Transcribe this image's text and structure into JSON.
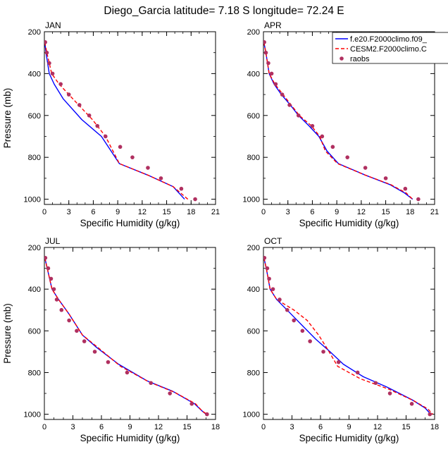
{
  "figure": {
    "title": "Diego_Garcia  latitude= 7.18 S longitude= 72.24 E"
  },
  "legend": {
    "placement": "top-right of APR panel",
    "entries": [
      {
        "label": "f.e20.F2000climo.f09_",
        "style": "solid",
        "color": "#0000ff"
      },
      {
        "label": "CESM2.F2000climo.C",
        "style": "dashed",
        "color": "#ff0000"
      },
      {
        "label": "raobs",
        "style": "marker",
        "color": "#b03060"
      }
    ]
  },
  "chart_data": [
    {
      "type": "line",
      "panel": "JAN",
      "title": "JAN",
      "xlabel": "Specific Humidity (g/kg)",
      "ylabel": "Pressure (mb)",
      "xlim": [
        0,
        21
      ],
      "ylim": [
        1025,
        200
      ],
      "xticks": [
        0,
        3,
        6,
        9,
        12,
        15,
        18,
        21
      ],
      "yticks": [
        200,
        400,
        600,
        800,
        1000
      ],
      "grid": false,
      "series": [
        {
          "name": "f.e20.F2000climo.f09_",
          "style": "solid",
          "color": "#0000ff",
          "points": [
            [
              0.05,
              250
            ],
            [
              0.2,
              300
            ],
            [
              0.6,
              400
            ],
            [
              1.2,
              450
            ],
            [
              2.3,
              520
            ],
            [
              4.6,
              620
            ],
            [
              7.0,
              700
            ],
            [
              9.2,
              830
            ],
            [
              12.7,
              885
            ],
            [
              15.8,
              940
            ],
            [
              17.2,
              1000
            ]
          ]
        },
        {
          "name": "CESM2.F2000climo.C",
          "style": "dashed",
          "color": "#ff0000",
          "points": [
            [
              0.05,
              250
            ],
            [
              0.3,
              300
            ],
            [
              0.9,
              400
            ],
            [
              1.8,
              450
            ],
            [
              4.2,
              550
            ],
            [
              5.9,
              620
            ],
            [
              7.5,
              700
            ],
            [
              9.2,
              830
            ],
            [
              12.7,
              885
            ],
            [
              15.8,
              940
            ],
            [
              17.6,
              1000
            ]
          ]
        },
        {
          "name": "raobs",
          "style": "marker",
          "color": "#b03060",
          "points": [
            [
              0.1,
              250
            ],
            [
              0.3,
              300
            ],
            [
              0.6,
              350
            ],
            [
              1.0,
              400
            ],
            [
              2.0,
              450
            ],
            [
              3.0,
              500
            ],
            [
              4.3,
              550
            ],
            [
              5.5,
              600
            ],
            [
              6.5,
              650
            ],
            [
              7.5,
              700
            ],
            [
              9.3,
              750
            ],
            [
              10.8,
              800
            ],
            [
              12.7,
              850
            ],
            [
              14.3,
              900
            ],
            [
              16.8,
              950
            ],
            [
              18.5,
              1000
            ]
          ]
        }
      ]
    },
    {
      "type": "line",
      "panel": "APR",
      "title": "APR",
      "xlabel": "Specific Humidity (g/kg)",
      "ylabel": "",
      "xlim": [
        0,
        21
      ],
      "ylim": [
        1025,
        200
      ],
      "xticks": [
        0,
        3,
        6,
        9,
        12,
        15,
        18,
        21
      ],
      "yticks": [
        200,
        400,
        600,
        800,
        1000
      ],
      "grid": false,
      "series": [
        {
          "name": "f.e20.F2000climo.f09_",
          "style": "solid",
          "color": "#0000ff",
          "points": [
            [
              0.05,
              250
            ],
            [
              0.3,
              300
            ],
            [
              0.7,
              400
            ],
            [
              1.3,
              450
            ],
            [
              2.2,
              500
            ],
            [
              3.3,
              550
            ],
            [
              4.3,
              600
            ],
            [
              5.6,
              650
            ],
            [
              6.8,
              700
            ],
            [
              7.8,
              770
            ],
            [
              9.2,
              830
            ],
            [
              12.5,
              885
            ],
            [
              15.5,
              930
            ],
            [
              17.3,
              970
            ],
            [
              18.3,
              1000
            ]
          ]
        },
        {
          "name": "CESM2.F2000climo.C",
          "style": "dashed",
          "color": "#ff0000",
          "points": [
            [
              0.05,
              250
            ],
            [
              0.3,
              300
            ],
            [
              0.7,
              400
            ],
            [
              1.4,
              450
            ],
            [
              2.4,
              500
            ],
            [
              3.4,
              550
            ],
            [
              4.4,
              600
            ],
            [
              5.9,
              650
            ],
            [
              6.9,
              700
            ],
            [
              7.6,
              770
            ],
            [
              9.1,
              830
            ],
            [
              12.5,
              885
            ],
            [
              15.6,
              930
            ],
            [
              17.5,
              970
            ],
            [
              18.3,
              1000
            ]
          ]
        },
        {
          "name": "raobs",
          "style": "marker",
          "color": "#b03060",
          "points": [
            [
              0.1,
              250
            ],
            [
              0.3,
              300
            ],
            [
              0.6,
              350
            ],
            [
              1.0,
              400
            ],
            [
              1.5,
              450
            ],
            [
              2.3,
              500
            ],
            [
              3.2,
              550
            ],
            [
              4.3,
              600
            ],
            [
              6.0,
              650
            ],
            [
              7.2,
              700
            ],
            [
              8.5,
              750
            ],
            [
              10.3,
              800
            ],
            [
              12.5,
              850
            ],
            [
              15.0,
              900
            ],
            [
              17.4,
              950
            ],
            [
              19.0,
              1000
            ]
          ]
        }
      ]
    },
    {
      "type": "line",
      "panel": "JUL",
      "title": "JUL",
      "xlabel": "Specific Humidity (g/kg)",
      "ylabel": "Pressure (mb)",
      "xlim": [
        0,
        18
      ],
      "ylim": [
        1025,
        200
      ],
      "xticks": [
        0,
        3,
        6,
        9,
        12,
        15,
        18
      ],
      "yticks": [
        200,
        400,
        600,
        800,
        1000
      ],
      "grid": false,
      "series": [
        {
          "name": "f.e20.F2000climo.f09_",
          "style": "solid",
          "color": "#0000ff",
          "points": [
            [
              0.05,
              250
            ],
            [
              0.3,
              300
            ],
            [
              0.8,
              400
            ],
            [
              1.5,
              450
            ],
            [
              2.6,
              520
            ],
            [
              4.0,
              620
            ],
            [
              5.5,
              680
            ],
            [
              7.8,
              760
            ],
            [
              10.8,
              840
            ],
            [
              13.5,
              890
            ],
            [
              15.8,
              950
            ],
            [
              16.6,
              985
            ],
            [
              17.0,
              1000
            ]
          ]
        },
        {
          "name": "CESM2.F2000climo.C",
          "style": "dashed",
          "color": "#ff0000",
          "points": [
            [
              0.05,
              250
            ],
            [
              0.3,
              300
            ],
            [
              0.8,
              400
            ],
            [
              1.5,
              450
            ],
            [
              2.6,
              520
            ],
            [
              4.0,
              620
            ],
            [
              5.9,
              690
            ],
            [
              8.0,
              770
            ],
            [
              11.0,
              845
            ],
            [
              13.7,
              895
            ],
            [
              15.9,
              950
            ],
            [
              16.6,
              985
            ],
            [
              17.1,
              1000
            ]
          ]
        },
        {
          "name": "raobs",
          "style": "marker",
          "color": "#b03060",
          "points": [
            [
              0.1,
              250
            ],
            [
              0.4,
              300
            ],
            [
              0.7,
              350
            ],
            [
              1.0,
              400
            ],
            [
              1.3,
              450
            ],
            [
              1.8,
              500
            ],
            [
              2.6,
              550
            ],
            [
              3.4,
              600
            ],
            [
              4.2,
              650
            ],
            [
              5.3,
              700
            ],
            [
              6.7,
              750
            ],
            [
              8.7,
              800
            ],
            [
              11.2,
              850
            ],
            [
              13.2,
              900
            ],
            [
              15.5,
              950
            ],
            [
              17.1,
              1000
            ]
          ]
        }
      ]
    },
    {
      "type": "line",
      "panel": "OCT",
      "title": "OCT",
      "xlabel": "Specific Humidity (g/kg)",
      "ylabel": "",
      "xlim": [
        0,
        18
      ],
      "ylim": [
        1025,
        200
      ],
      "xticks": [
        0,
        3,
        6,
        9,
        12,
        15,
        18
      ],
      "yticks": [
        200,
        400,
        600,
        800,
        1000
      ],
      "grid": false,
      "series": [
        {
          "name": "f.e20.F2000climo.f09_",
          "style": "solid",
          "color": "#0000ff",
          "points": [
            [
              0.05,
              250
            ],
            [
              0.3,
              300
            ],
            [
              0.7,
              400
            ],
            [
              1.4,
              450
            ],
            [
              2.7,
              510
            ],
            [
              4.2,
              580
            ],
            [
              5.5,
              640
            ],
            [
              7.0,
              700
            ],
            [
              8.4,
              760
            ],
            [
              10.5,
              820
            ],
            [
              13.0,
              870
            ],
            [
              15.6,
              930
            ],
            [
              17.0,
              970
            ],
            [
              17.6,
              1000
            ]
          ]
        },
        {
          "name": "CESM2.F2000climo.C",
          "style": "dashed",
          "color": "#ff0000",
          "points": [
            [
              0.05,
              250
            ],
            [
              0.3,
              300
            ],
            [
              0.7,
              400
            ],
            [
              1.4,
              450
            ],
            [
              3.2,
              500
            ],
            [
              4.6,
              550
            ],
            [
              5.8,
              620
            ],
            [
              6.9,
              700
            ],
            [
              7.8,
              770
            ],
            [
              10.2,
              830
            ],
            [
              13.2,
              880
            ],
            [
              15.8,
              935
            ],
            [
              17.3,
              975
            ],
            [
              17.8,
              1000
            ]
          ]
        },
        {
          "name": "raobs",
          "style": "marker",
          "color": "#b03060",
          "points": [
            [
              0.1,
              250
            ],
            [
              0.4,
              300
            ],
            [
              0.6,
              350
            ],
            [
              1.0,
              400
            ],
            [
              1.7,
              450
            ],
            [
              2.5,
              500
            ],
            [
              3.2,
              550
            ],
            [
              4.1,
              600
            ],
            [
              4.9,
              650
            ],
            [
              6.3,
              700
            ],
            [
              7.9,
              750
            ],
            [
              9.9,
              800
            ],
            [
              11.8,
              850
            ],
            [
              13.3,
              900
            ],
            [
              15.6,
              950
            ],
            [
              17.5,
              1000
            ]
          ]
        }
      ]
    }
  ]
}
